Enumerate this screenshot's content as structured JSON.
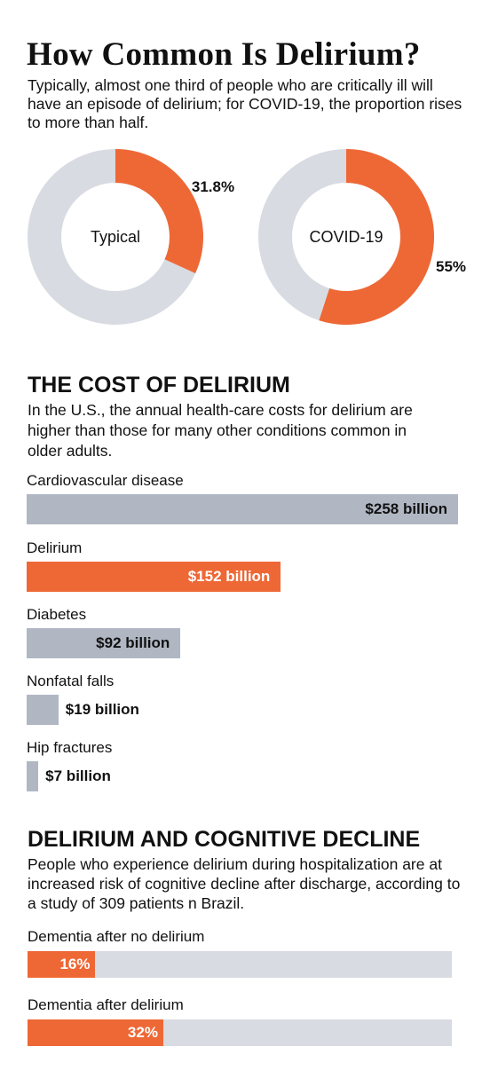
{
  "header": {
    "title": "How Common Is Delirium?",
    "subtitle": "Typically, almost one third of people who are critically ill will have an episode of delirium; for COVID-19, the proportion rises to more than half."
  },
  "cost_section": {
    "title": "THE COST OF DELIRIUM",
    "description": "In the U.S., the annual health-care costs for delirium are higher than those for many other conditions common in older adults."
  },
  "cognitive_section": {
    "title": "DELIRIUM AND COGNITIVE DECLINE",
    "description": "People who experience delirium during hospitalization are at increased risk of cognitive decline after discharge, according to a study of 309 patients n Brazil."
  },
  "colors": {
    "accent": "#ee6836",
    "gray_bar": "#b0b7c3",
    "gray_ring": "#d8dbe1"
  },
  "chart_data": [
    {
      "type": "pie",
      "subtype": "donut",
      "center_label": "Typical",
      "value": 31.8,
      "value_label": "31.8%"
    },
    {
      "type": "pie",
      "subtype": "donut",
      "center_label": "COVID-19",
      "value": 55,
      "value_label": "55%"
    },
    {
      "type": "bar",
      "orientation": "horizontal",
      "categories": [
        "Cardiovascular disease",
        "Delirium",
        "Diabetes",
        "Nonfatal falls",
        "Hip fractures"
      ],
      "values": [
        258,
        152,
        92,
        19,
        7
      ],
      "value_labels": [
        "$258 billion",
        "$152 billion",
        "$92 billion",
        "$19 billion",
        "$7 billion"
      ],
      "highlight": "Delirium",
      "unit": "billion USD"
    },
    {
      "type": "bar",
      "orientation": "horizontal",
      "categories": [
        "Dementia after no delirium",
        "Dementia after delirium"
      ],
      "values": [
        16,
        32
      ],
      "value_labels": [
        "16%",
        "32%"
      ],
      "xlim": [
        0,
        100
      ]
    }
  ]
}
